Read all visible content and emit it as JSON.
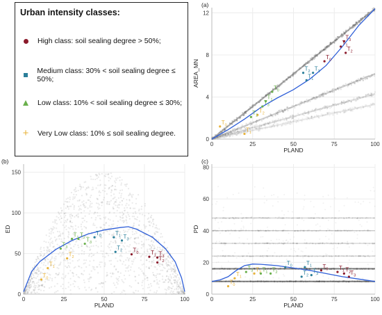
{
  "legend": {
    "title": "Urban intensity classes:",
    "items": [
      {
        "label": "High class: soil sealing degree > 50%;",
        "color": "#8b1a2b",
        "marker": "dot"
      },
      {
        "label": "Medium class: 30% <  soil sealing degree ≤ 50%;",
        "color": "#2b7f9a",
        "marker": "square"
      },
      {
        "label": "Low class: 10% < soil sealing degree ≤ 30%;",
        "color": "#6ab04c",
        "marker": "triangle"
      },
      {
        "label": "Very Low class: 10% ≤ soil sealing degree.",
        "color": "#e8b33a",
        "marker": "plus"
      }
    ]
  },
  "chart_data": [
    {
      "panel": "(a)",
      "type": "scatter",
      "xlabel": "PLAND",
      "ylabel": "AREA_MN",
      "xlim": [
        0,
        100
      ],
      "ylim": [
        0,
        12.5
      ],
      "xticks": [
        0,
        25,
        50,
        75,
        100
      ],
      "yticks": [
        0,
        4,
        8,
        12
      ],
      "curve_color": "#2f5fd8",
      "curve": [
        [
          0,
          0
        ],
        [
          10,
          0.9
        ],
        [
          20,
          1.9
        ],
        [
          30,
          3.0
        ],
        [
          40,
          3.9
        ],
        [
          50,
          4.7
        ],
        [
          60,
          5.7
        ],
        [
          70,
          7.0
        ],
        [
          80,
          8.8
        ],
        [
          90,
          10.8
        ],
        [
          100,
          12.4
        ]
      ],
      "bands": [
        {
          "slope": 0.124,
          "alpha": 0.8
        },
        {
          "slope": 0.062,
          "alpha": 0.45
        },
        {
          "slope": 0.043,
          "alpha": 0.3
        },
        {
          "slope": 0.033,
          "alpha": 0.2
        }
      ],
      "points": [
        {
          "class": "very-low",
          "label": "T",
          "sub": "0",
          "x": 5,
          "y": 1.2
        },
        {
          "class": "very-low",
          "label": "T",
          "sub": "1",
          "x": 20,
          "y": 0.5
        },
        {
          "class": "very-low",
          "label": "T",
          "sub": "2",
          "x": 28,
          "y": 2.3
        },
        {
          "class": "low",
          "label": "T",
          "sub": "2",
          "x": 24,
          "y": 2.1
        },
        {
          "class": "low",
          "label": "T",
          "sub": "3",
          "x": 31,
          "y": 3.1
        },
        {
          "class": "low",
          "label": "T",
          "sub": "1",
          "x": 33,
          "y": 3.6
        },
        {
          "class": "low",
          "label": "T",
          "sub": "0",
          "x": 37,
          "y": 4.5
        },
        {
          "class": "medium",
          "label": "T",
          "sub": "2",
          "x": 56,
          "y": 6.3
        },
        {
          "class": "medium",
          "label": "T",
          "sub": "3",
          "x": 62,
          "y": 6.3
        },
        {
          "class": "medium",
          "label": "T",
          "sub": "1",
          "x": 58,
          "y": 5.6
        },
        {
          "class": "high",
          "label": "T",
          "sub": "0",
          "x": 69,
          "y": 7.4
        },
        {
          "class": "high",
          "label": "T",
          "sub": "1",
          "x": 79,
          "y": 8.8
        },
        {
          "class": "high",
          "label": "T",
          "sub": "3",
          "x": 81,
          "y": 9.3
        },
        {
          "class": "high",
          "label": "T",
          "sub": "2",
          "x": 82,
          "y": 8.2
        }
      ]
    },
    {
      "panel": "(b)",
      "type": "scatter",
      "xlabel": "PLAND",
      "ylabel": "ED",
      "xlim": [
        0,
        100
      ],
      "ylim": [
        0,
        160
      ],
      "xticks": [
        0,
        25,
        50,
        75,
        100
      ],
      "yticks": [
        0,
        50,
        100,
        150
      ],
      "curve_color": "#2f5fd8",
      "curve": [
        [
          0,
          3
        ],
        [
          5,
          28
        ],
        [
          10,
          40
        ],
        [
          20,
          55
        ],
        [
          30,
          66
        ],
        [
          40,
          74
        ],
        [
          50,
          79
        ],
        [
          60,
          82
        ],
        [
          65,
          83
        ],
        [
          70,
          80
        ],
        [
          80,
          70
        ],
        [
          88,
          56
        ],
        [
          94,
          40
        ],
        [
          98,
          20
        ],
        [
          100,
          3
        ]
      ],
      "points": [
        {
          "class": "very-low",
          "label": "T",
          "sub": "0",
          "x": 11,
          "y": 18
        },
        {
          "class": "very-low",
          "label": "T",
          "sub": "1",
          "x": 15,
          "y": 32
        },
        {
          "class": "very-low",
          "label": "T",
          "sub": "2",
          "x": 27,
          "y": 44
        },
        {
          "class": "low",
          "label": "T",
          "sub": "3",
          "x": 23,
          "y": 56
        },
        {
          "class": "low",
          "label": "T",
          "sub": "1",
          "x": 30,
          "y": 68
        },
        {
          "class": "low",
          "label": "T",
          "sub": "2",
          "x": 34,
          "y": 68
        },
        {
          "class": "low",
          "label": "T",
          "sub": "3",
          "x": 38,
          "y": 62
        },
        {
          "class": "medium",
          "label": "T",
          "sub": "0",
          "x": 44,
          "y": 70
        },
        {
          "class": "medium",
          "label": "T",
          "sub": "1",
          "x": 56,
          "y": 70
        },
        {
          "class": "medium",
          "label": "T",
          "sub": "3",
          "x": 61,
          "y": 66
        },
        {
          "class": "medium",
          "label": "T",
          "sub": "2",
          "x": 57,
          "y": 52
        },
        {
          "class": "high",
          "label": "T",
          "sub": "0",
          "x": 67,
          "y": 49
        },
        {
          "class": "high",
          "label": "T",
          "sub": "1",
          "x": 78,
          "y": 46
        },
        {
          "class": "high",
          "label": "T",
          "sub": "3",
          "x": 83,
          "y": 45
        },
        {
          "class": "high",
          "label": "T",
          "sub": "2",
          "x": 83,
          "y": 39
        }
      ]
    },
    {
      "panel": "(c)",
      "type": "scatter",
      "xlabel": "PLAND",
      "ylabel": "PD",
      "xlim": [
        0,
        100
      ],
      "ylim": [
        0,
        82
      ],
      "xticks": [
        0,
        25,
        50,
        75,
        100
      ],
      "yticks": [
        0,
        20,
        40,
        60,
        80
      ],
      "curve_color": "#2f5fd8",
      "curve": [
        [
          0,
          8
        ],
        [
          5,
          9
        ],
        [
          10,
          11
        ],
        [
          15,
          15
        ],
        [
          20,
          18
        ],
        [
          25,
          19
        ],
        [
          30,
          18.8
        ],
        [
          40,
          18
        ],
        [
          50,
          16.5
        ],
        [
          60,
          15
        ],
        [
          70,
          13
        ],
        [
          80,
          11
        ],
        [
          90,
          9.5
        ],
        [
          100,
          8
        ]
      ],
      "bands_y": [
        8,
        16,
        24,
        32,
        40,
        48
      ],
      "points": [
        {
          "class": "very-low",
          "label": "T",
          "sub": "0",
          "x": 10,
          "y": 5
        },
        {
          "class": "very-low",
          "label": "T",
          "sub": "1",
          "x": 14,
          "y": 10
        },
        {
          "class": "very-low",
          "label": "T",
          "sub": "2",
          "x": 26,
          "y": 13
        },
        {
          "class": "low",
          "label": "T",
          "sub": "3",
          "x": 21,
          "y": 14
        },
        {
          "class": "low",
          "label": "T",
          "sub": "1",
          "x": 30,
          "y": 13
        },
        {
          "class": "low",
          "label": "T",
          "sub": "2",
          "x": 36,
          "y": 13
        },
        {
          "class": "medium",
          "label": "T",
          "sub": "0",
          "x": 45,
          "y": 17
        },
        {
          "class": "medium",
          "label": "T",
          "sub": "1",
          "x": 57,
          "y": 17
        },
        {
          "class": "medium",
          "label": "T",
          "sub": "2",
          "x": 55,
          "y": 11
        },
        {
          "class": "medium",
          "label": "T",
          "sub": "3",
          "x": 61,
          "y": 12
        },
        {
          "class": "high",
          "label": "T",
          "sub": "0",
          "x": 67,
          "y": 15
        },
        {
          "class": "high",
          "label": "T",
          "sub": "1",
          "x": 77,
          "y": 14
        },
        {
          "class": "high",
          "label": "T",
          "sub": "2",
          "x": 81,
          "y": 13
        },
        {
          "class": "high",
          "label": "T",
          "sub": "3",
          "x": 84,
          "y": 11
        }
      ]
    }
  ]
}
